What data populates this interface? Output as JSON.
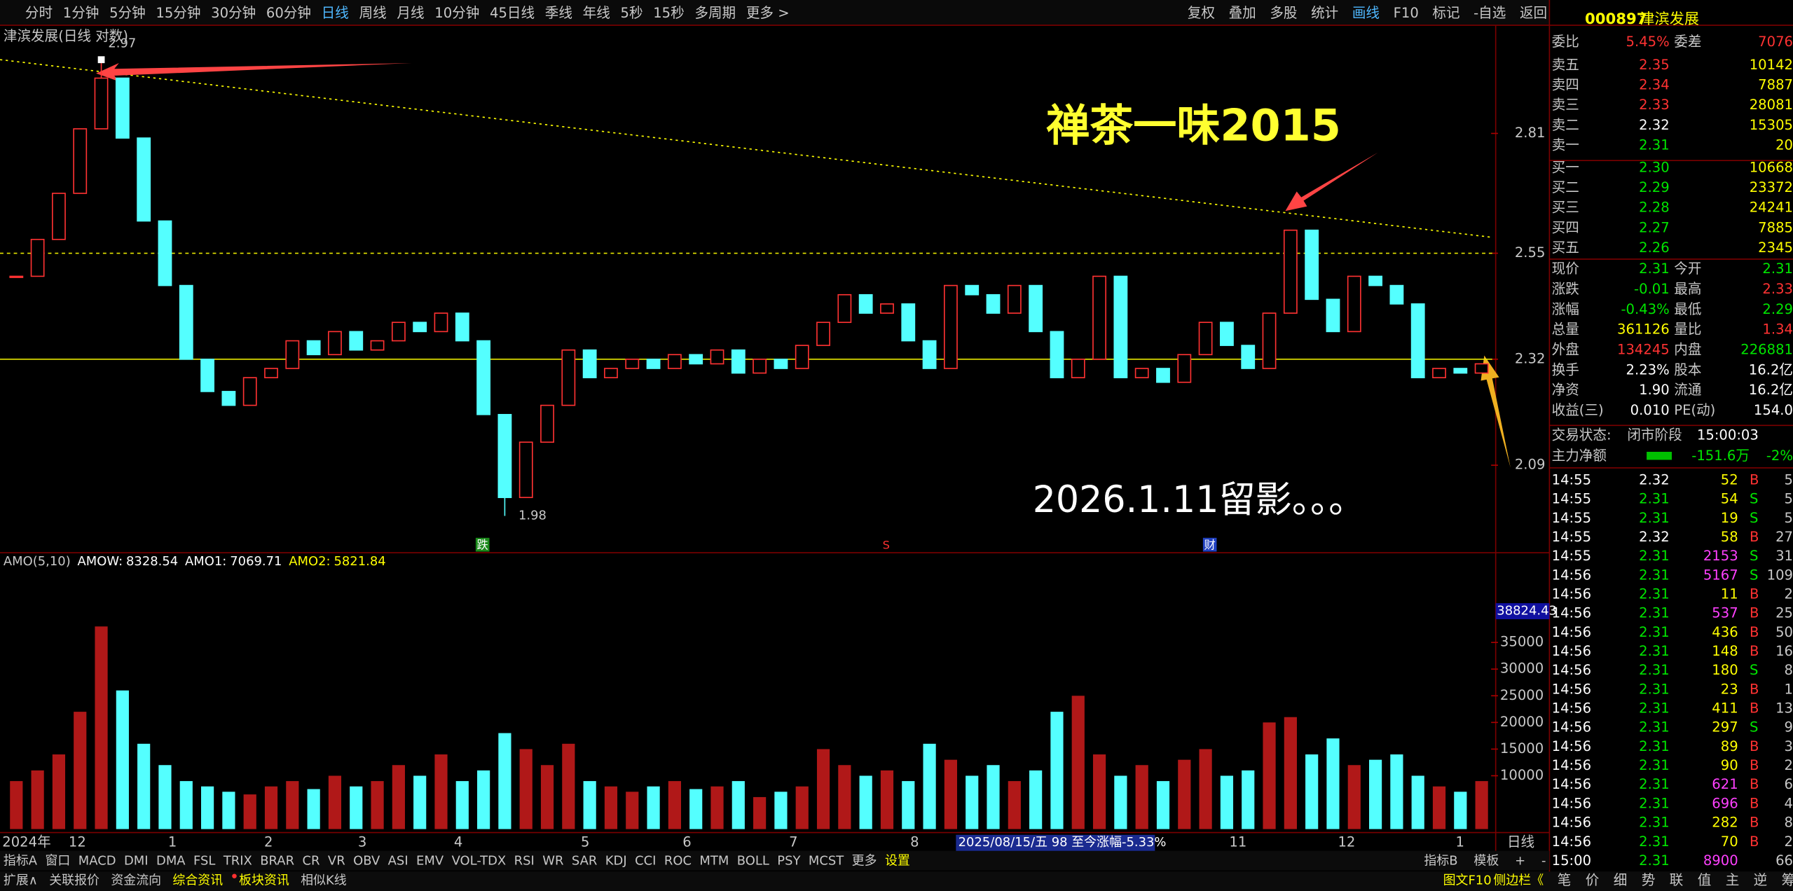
{
  "toolbar": {
    "periods": [
      "分时",
      "1分钟",
      "5分钟",
      "15分钟",
      "30分钟",
      "60分钟",
      "日线",
      "周线",
      "月线",
      "10分钟",
      "45日线",
      "季线",
      "年线",
      "5秒",
      "15秒",
      "多周期",
      "更多 >"
    ],
    "active": "日线",
    "tools": [
      "复权",
      "叠加",
      "多股",
      "统计",
      "画线",
      "F10",
      "标记",
      "-自选",
      "返回"
    ]
  },
  "chart_data": [
    {
      "type": "candlestick",
      "title": "津滨发展(日线 对数)",
      "colors": {
        "up": "#ff3232",
        "down": "#54ffff"
      },
      "values": [
        2.5,
        2.58,
        2.68,
        2.82,
        2.93,
        2.8,
        2.62,
        2.48,
        2.32,
        2.25,
        2.22,
        2.28,
        2.3,
        2.36,
        2.33,
        2.38,
        2.34,
        2.36,
        2.4,
        2.38,
        2.42,
        2.36,
        2.2,
        2.02,
        2.14,
        2.22,
        2.34,
        2.28,
        2.3,
        2.32,
        2.3,
        2.33,
        2.31,
        2.34,
        2.29,
        2.32,
        2.3,
        2.35,
        2.4,
        2.46,
        2.42,
        2.44,
        2.36,
        2.3,
        2.48,
        2.46,
        2.42,
        2.48,
        2.38,
        2.28,
        2.32,
        2.5,
        2.28,
        2.3,
        2.27,
        2.33,
        2.4,
        2.35,
        2.3,
        2.42,
        2.6,
        2.45,
        2.38,
        2.5,
        2.48,
        2.44,
        2.28,
        2.3,
        2.29,
        2.31
      ],
      "high": 2.97,
      "low": 1.98,
      "hlines": [
        2.55,
        2.32
      ],
      "ylim": [
        1.93,
        3.0
      ],
      "yticks": [
        2.09,
        2.32,
        2.55,
        2.81
      ],
      "annotations": [
        "禅茶一味2015",
        "2026.1.11留影。。。"
      ],
      "markers": [
        "跌",
        "S",
        "财"
      ]
    },
    {
      "type": "bar",
      "indicator": "AMO(5,10)",
      "readouts": [
        {
          "name": "AMOW:",
          "value": 8328.54,
          "color": "#ffffff"
        },
        {
          "name": "AMO1:",
          "value": 7069.71,
          "color": "#ffffff"
        },
        {
          "name": "AMO2:",
          "value": 5821.84,
          "color": "#ffff00"
        }
      ],
      "values": [
        9000,
        11000,
        14000,
        22000,
        38000,
        26000,
        16000,
        12000,
        9000,
        8000,
        7000,
        6500,
        8000,
        9000,
        7500,
        10000,
        8000,
        9000,
        12000,
        10000,
        14000,
        9000,
        11000,
        18000,
        15000,
        12000,
        16000,
        9000,
        8000,
        7000,
        8000,
        9000,
        7500,
        8000,
        9000,
        6000,
        7000,
        8000,
        15000,
        12000,
        10000,
        11000,
        9000,
        16000,
        13000,
        10000,
        12000,
        9000,
        11000,
        22000,
        25000,
        14000,
        10000,
        12000,
        9000,
        13000,
        15000,
        10000,
        11000,
        20000,
        21000,
        14000,
        17000,
        12000,
        13000,
        14000,
        10000,
        8000,
        7000,
        9000
      ],
      "ylim": [
        0,
        40000
      ],
      "yticks": [
        10000,
        15000,
        20000,
        25000,
        30000,
        35000
      ],
      "max_label": 38824.43,
      "xlabels": [
        "2024年",
        "12",
        "1",
        "2",
        "3",
        "4",
        "5",
        "6",
        "7",
        "8",
        "11",
        "12",
        "1"
      ],
      "period_label": "日线",
      "cursor_info": "2025/08/15/五 98 至今涨幅-5.33%"
    }
  ],
  "quote": {
    "code": "000897",
    "name": "津滨发展",
    "ratio": [
      "委比",
      "5.45%",
      "委差",
      "7076"
    ],
    "book": [
      [
        "卖五",
        "2.35",
        "10142",
        "#ff3232"
      ],
      [
        "卖四",
        "2.34",
        "7887",
        "#ff3232"
      ],
      [
        "卖三",
        "2.33",
        "28081",
        "#ff3232"
      ],
      [
        "卖二",
        "2.32",
        "15305",
        "#ffffff"
      ],
      [
        "卖一",
        "2.31",
        "20",
        "#00e600"
      ],
      [
        "买一",
        "2.30",
        "10668",
        "#00e600"
      ],
      [
        "买二",
        "2.29",
        "23372",
        "#00e600"
      ],
      [
        "买三",
        "2.28",
        "24241",
        "#00e600"
      ],
      [
        "买四",
        "2.27",
        "7885",
        "#00e600"
      ],
      [
        "买五",
        "2.26",
        "2345",
        "#00e600"
      ]
    ],
    "stats": [
      [
        "现价",
        "2.31",
        "今开",
        "2.31",
        "#00e600",
        "#00e600"
      ],
      [
        "涨跌",
        "-0.01",
        "最高",
        "2.33",
        "#00e600",
        "#ff3232"
      ],
      [
        "涨幅",
        "-0.43%",
        "最低",
        "2.29",
        "#00e600",
        "#00e600"
      ],
      [
        "总量",
        "361126",
        "量比",
        "1.34",
        "#ffff00",
        "#ff3232"
      ],
      [
        "外盘",
        "134245",
        "内盘",
        "226881",
        "#ff3232",
        "#00e600"
      ],
      [
        "换手",
        "2.23%",
        "股本",
        "16.2亿",
        "#ffffff",
        "#ffffff"
      ],
      [
        "净资",
        "1.90",
        "流通",
        "16.2亿",
        "#ffffff",
        "#ffffff"
      ],
      [
        "收益(三)",
        "0.010",
        "PE(动)",
        "154.0",
        "#ffffff",
        "#ffffff"
      ]
    ],
    "status": [
      "交易状态:",
      "闭市阶段",
      "15:00:03"
    ],
    "flow": [
      "主力净额",
      "-151.6万",
      "-2%"
    ],
    "trades": [
      [
        "14:55",
        "2.32",
        "52",
        "B",
        "5"
      ],
      [
        "14:55",
        "2.31",
        "54",
        "S",
        "5"
      ],
      [
        "14:55",
        "2.31",
        "19",
        "S",
        "5"
      ],
      [
        "14:55",
        "2.32",
        "58",
        "B",
        "27"
      ],
      [
        "14:55",
        "2.31",
        "2153",
        "S",
        "31"
      ],
      [
        "14:56",
        "2.31",
        "5167",
        "S",
        "109"
      ],
      [
        "14:56",
        "2.31",
        "11",
        "B",
        "2"
      ],
      [
        "14:56",
        "2.31",
        "537",
        "B",
        "25"
      ],
      [
        "14:56",
        "2.31",
        "436",
        "B",
        "50"
      ],
      [
        "14:56",
        "2.31",
        "148",
        "B",
        "16"
      ],
      [
        "14:56",
        "2.31",
        "180",
        "S",
        "8"
      ],
      [
        "14:56",
        "2.31",
        "23",
        "B",
        "1"
      ],
      [
        "14:56",
        "2.31",
        "411",
        "B",
        "13"
      ],
      [
        "14:56",
        "2.31",
        "297",
        "S",
        "9"
      ],
      [
        "14:56",
        "2.31",
        "89",
        "B",
        "3"
      ],
      [
        "14:56",
        "2.31",
        "90",
        "B",
        "2"
      ],
      [
        "14:56",
        "2.31",
        "621",
        "B",
        "6"
      ],
      [
        "14:56",
        "2.31",
        "696",
        "B",
        "4"
      ],
      [
        "14:56",
        "2.31",
        "282",
        "B",
        "8"
      ],
      [
        "14:56",
        "2.31",
        "70",
        "B",
        "2"
      ],
      [
        "15:00",
        "2.31",
        "8900",
        "",
        "66"
      ]
    ]
  },
  "footer": {
    "indicators": [
      "指标A",
      "窗口",
      "MACD",
      "DMI",
      "DMA",
      "FSL",
      "TRIX",
      "BRAR",
      "CR",
      "VR",
      "OBV",
      "ASI",
      "EMV",
      "VOL-TDX",
      "RSI",
      "WR",
      "SAR",
      "KDJ",
      "CCI",
      "ROC",
      "MTM",
      "BOLL",
      "PSY",
      "MCST",
      "更多",
      "设置"
    ],
    "indicators_right": [
      "指标B",
      "模板",
      "+",
      "-"
    ],
    "tabs": [
      "扩展∧",
      "关联报价",
      "资金流向",
      "综合资讯",
      "板块资讯",
      "相似K线"
    ],
    "tabs_right": [
      "图文F10",
      "侧边栏《"
    ],
    "side_tabs": [
      "笔",
      "价",
      "细",
      "势",
      "联",
      "值",
      "主",
      "逆",
      "筹"
    ]
  }
}
